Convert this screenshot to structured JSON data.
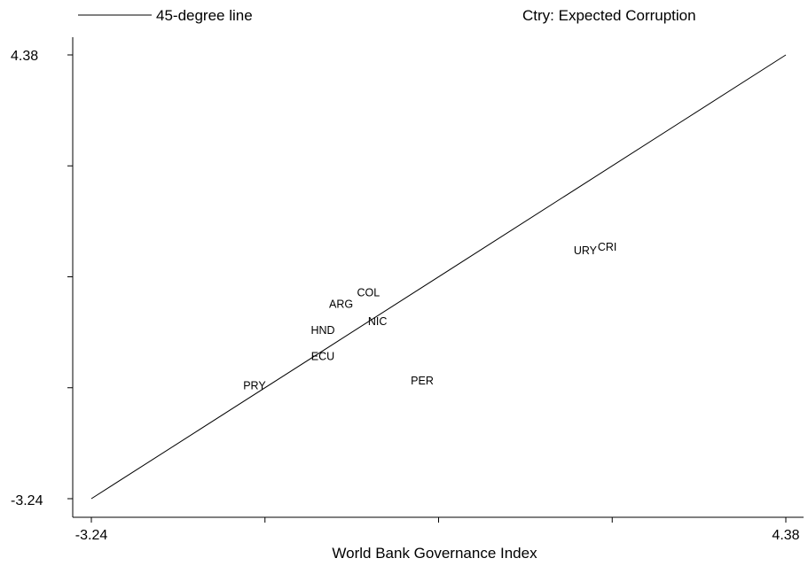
{
  "chart_data": {
    "type": "scatter",
    "legend_line_label": "45-degree line",
    "series_label": "Ctry: Expected Corruption",
    "xlabel": "World Bank Governance Index",
    "ylabel": "",
    "xlim": [
      -3.24,
      4.38
    ],
    "ylim": [
      -3.24,
      4.38
    ],
    "x_tick_labels": [
      "-3.24",
      "4.38"
    ],
    "y_tick_labels": [
      "4.38",
      "-3.24"
    ],
    "reference_line": {
      "name": "45-degree line",
      "from": [
        -3.24,
        -3.24
      ],
      "to": [
        4.38,
        4.38
      ]
    },
    "points": [
      {
        "label": "PRY",
        "x": -1.45,
        "y": -1.3
      },
      {
        "label": "ECU",
        "x": -0.7,
        "y": -0.8
      },
      {
        "label": "HND",
        "x": -0.7,
        "y": -0.35
      },
      {
        "label": "ARG",
        "x": -0.5,
        "y": 0.1
      },
      {
        "label": "COL",
        "x": -0.2,
        "y": 0.3
      },
      {
        "label": "NIC",
        "x": -0.1,
        "y": -0.2
      },
      {
        "label": "PER",
        "x": 0.39,
        "y": -1.22
      },
      {
        "label": "URY",
        "x": 2.18,
        "y": 1.02
      },
      {
        "label": "CRI",
        "x": 2.42,
        "y": 1.08
      }
    ]
  }
}
